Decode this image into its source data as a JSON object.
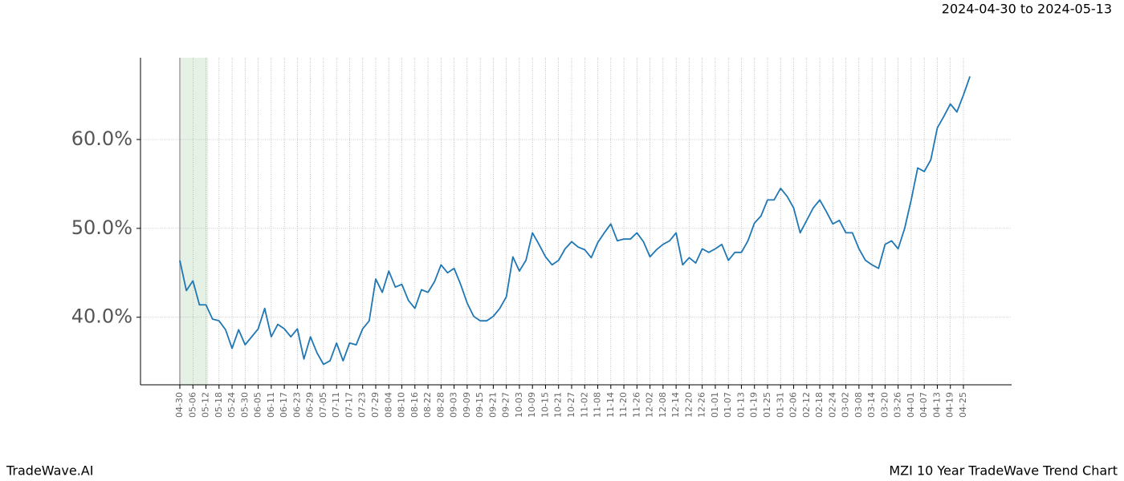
{
  "chart_data": {
    "type": "line",
    "title": "2024-04-30 to 2024-05-13",
    "footer_left": "TradeWave.AI",
    "footer_right": "MZI 10 Year TradeWave Trend Chart",
    "categories": [
      "04-30",
      null,
      "05-06",
      null,
      "05-12",
      null,
      "05-18",
      null,
      "05-24",
      null,
      "05-30",
      null,
      "06-05",
      null,
      "06-11",
      null,
      "06-17",
      null,
      "06-23",
      null,
      "06-29",
      null,
      "07-05",
      null,
      "07-11",
      null,
      "07-17",
      null,
      "07-23",
      null,
      "07-29",
      null,
      "08-04",
      null,
      "08-10",
      null,
      "08-16",
      null,
      "08-22",
      null,
      "08-28",
      null,
      "09-03",
      null,
      "09-09",
      null,
      "09-15",
      null,
      "09-21",
      null,
      "09-27",
      null,
      "10-03",
      null,
      "10-09",
      null,
      "10-15",
      null,
      "10-21",
      null,
      "10-27",
      null,
      "11-02",
      null,
      "11-08",
      null,
      "11-14",
      null,
      "11-20",
      null,
      "11-26",
      null,
      "12-02",
      null,
      "12-08",
      null,
      "12-14",
      null,
      "12-20",
      null,
      "12-26",
      null,
      "01-01",
      null,
      "01-07",
      null,
      "01-13",
      null,
      "01-19",
      null,
      "01-25",
      null,
      "01-31",
      null,
      "02-06",
      null,
      "02-12",
      null,
      "02-18",
      null,
      "02-24",
      null,
      "03-02",
      null,
      "03-08",
      null,
      "03-14",
      null,
      "03-20",
      null,
      "03-26",
      null,
      "04-01",
      null,
      "04-07",
      null,
      "04-13",
      null,
      "04-19",
      null,
      "04-25",
      null
    ],
    "series": [
      {
        "color": "#1f77b4",
        "values": [
          46.4,
          43.0,
          44.1,
          41.4,
          41.4,
          39.8,
          39.6,
          38.6,
          36.5,
          38.6,
          36.9,
          37.8,
          38.7,
          41.0,
          37.8,
          39.2,
          38.7,
          37.8,
          38.7,
          35.3,
          37.8,
          36.0,
          34.7,
          35.1,
          37.1,
          35.1,
          37.1,
          36.9,
          38.7,
          39.6,
          44.3,
          42.8,
          45.2,
          43.4,
          43.7,
          41.9,
          41.0,
          43.1,
          42.8,
          44.0,
          45.9,
          45.0,
          45.5,
          43.7,
          41.6,
          40.1,
          39.6,
          39.6,
          40.1,
          41.0,
          42.3,
          46.8,
          45.2,
          46.4,
          49.5,
          48.2,
          46.8,
          45.9,
          46.4,
          47.7,
          48.5,
          47.9,
          47.6,
          46.7,
          48.4,
          49.5,
          50.5,
          48.6,
          48.8,
          48.8,
          49.5,
          48.5,
          46.8,
          47.6,
          48.2,
          48.6,
          49.5,
          45.9,
          46.7,
          46.1,
          47.7,
          47.3,
          47.7,
          48.2,
          46.4,
          47.3,
          47.3,
          48.6,
          50.6,
          51.4,
          53.2,
          53.2,
          54.5,
          53.6,
          52.3,
          49.5,
          50.9,
          52.3,
          53.2,
          51.9,
          50.5,
          50.9,
          49.5,
          49.5,
          47.7,
          46.4,
          45.9,
          45.5,
          48.2,
          48.6,
          47.7,
          50.0,
          53.2,
          56.8,
          56.4,
          57.7,
          61.3,
          62.6,
          64.0,
          63.1,
          65.0,
          67.1
        ]
      }
    ],
    "highlight": [
      0,
      4.33
    ],
    "highlight_color": "#d5e8d4",
    "ylim": [
      32.4,
      69.2
    ],
    "yticks": [
      {
        "value": 40,
        "label": "40.0%"
      },
      {
        "value": 50,
        "label": "50.0%"
      },
      {
        "value": 60,
        "label": "60.0%"
      }
    ],
    "grid": true
  }
}
